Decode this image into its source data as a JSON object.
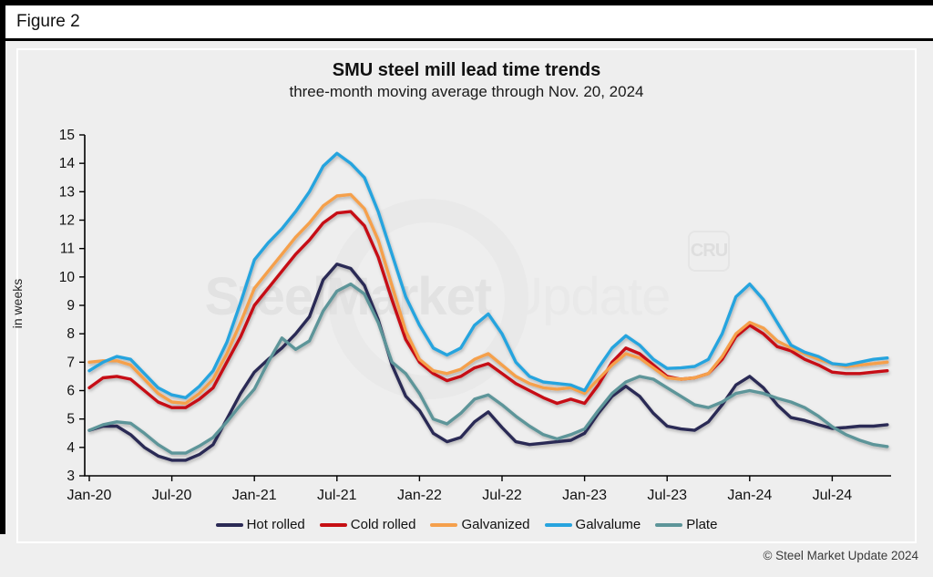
{
  "figure_label": "Figure 2",
  "title": "SMU steel mill lead time trends",
  "subtitle": "three-month moving average through Nov. 20, 2024",
  "copyright": "© Steel Market Update 2024",
  "watermark": {
    "main": "SteelMarket",
    "secondary": "Update",
    "badge": "CRU"
  },
  "colors": {
    "background": "#efefef",
    "panel_background": "#eeeeee",
    "axis": "#000000",
    "hot_rolled": "#2b2a55",
    "cold_rolled": "#c60f13",
    "galvanized": "#f5a04c",
    "galvalume": "#27a4de",
    "plate": "#5d9599"
  },
  "chart_data": {
    "type": "line",
    "title": "SMU steel mill lead time trends",
    "subtitle": "three-month moving average through Nov. 20, 2024",
    "xlabel": "",
    "ylabel": "in weeks",
    "ylim": [
      3,
      15
    ],
    "ytick_step": 1,
    "grid": false,
    "legend_position": "bottom",
    "x_frequency": "monthly",
    "x_range": [
      "Jan-2020",
      "Nov-2024"
    ],
    "x_ticks": [
      {
        "label": "Jan-20",
        "month_index": 0
      },
      {
        "label": "Jul-20",
        "month_index": 6
      },
      {
        "label": "Jan-21",
        "month_index": 12
      },
      {
        "label": "Jul-21",
        "month_index": 18
      },
      {
        "label": "Jan-22",
        "month_index": 24
      },
      {
        "label": "Jul-22",
        "month_index": 30
      },
      {
        "label": "Jan-23",
        "month_index": 36
      },
      {
        "label": "Jul-23",
        "month_index": 42
      },
      {
        "label": "Jan-24",
        "month_index": 48
      },
      {
        "label": "Jul-24",
        "month_index": 54
      }
    ],
    "series": [
      {
        "name": "Hot rolled",
        "color": "#2b2a55",
        "values": [
          4.6,
          4.75,
          4.75,
          4.45,
          4.0,
          3.7,
          3.55,
          3.55,
          3.75,
          4.1,
          5.0,
          5.9,
          6.65,
          7.1,
          7.5,
          8.0,
          8.6,
          9.9,
          10.45,
          10.3,
          9.7,
          8.5,
          6.9,
          5.8,
          5.3,
          4.5,
          4.2,
          4.35,
          4.9,
          5.25,
          4.7,
          4.2,
          4.1,
          4.15,
          4.2,
          4.25,
          4.5,
          5.2,
          5.8,
          6.15,
          5.8,
          5.2,
          4.75,
          4.65,
          4.6,
          4.9,
          5.5,
          6.2,
          6.5,
          6.1,
          5.5,
          5.05,
          4.95,
          4.8,
          4.67,
          4.7,
          4.75,
          4.75,
          4.8
        ]
      },
      {
        "name": "Cold rolled",
        "color": "#c60f13",
        "values": [
          6.1,
          6.45,
          6.5,
          6.4,
          6.0,
          5.6,
          5.4,
          5.4,
          5.7,
          6.1,
          7.0,
          7.9,
          9.0,
          9.6,
          10.2,
          10.8,
          11.3,
          11.9,
          12.25,
          12.3,
          11.8,
          10.7,
          9.2,
          7.8,
          7.0,
          6.6,
          6.35,
          6.5,
          6.8,
          6.95,
          6.6,
          6.25,
          6.0,
          5.75,
          5.55,
          5.7,
          5.55,
          6.2,
          7.0,
          7.5,
          7.3,
          6.9,
          6.5,
          6.4,
          6.45,
          6.6,
          7.1,
          7.9,
          8.3,
          8.0,
          7.55,
          7.4,
          7.1,
          6.9,
          6.65,
          6.6,
          6.6,
          6.65,
          6.7
        ]
      },
      {
        "name": "Galvanized",
        "color": "#f5a04c",
        "values": [
          7.0,
          7.05,
          7.05,
          6.9,
          6.4,
          5.9,
          5.6,
          5.55,
          5.9,
          6.4,
          7.3,
          8.4,
          9.6,
          10.2,
          10.8,
          11.4,
          11.9,
          12.5,
          12.85,
          12.9,
          12.4,
          11.3,
          9.7,
          8.1,
          7.1,
          6.7,
          6.6,
          6.75,
          7.1,
          7.3,
          6.9,
          6.5,
          6.25,
          6.1,
          6.05,
          6.1,
          5.9,
          6.4,
          6.9,
          7.3,
          7.15,
          6.8,
          6.45,
          6.4,
          6.45,
          6.6,
          7.2,
          8.0,
          8.4,
          8.2,
          7.75,
          7.5,
          7.3,
          7.1,
          6.95,
          6.85,
          6.9,
          6.95,
          7.0
        ]
      },
      {
        "name": "Galvalume",
        "color": "#27a4de",
        "values": [
          6.7,
          7.0,
          7.2,
          7.1,
          6.6,
          6.1,
          5.85,
          5.75,
          6.15,
          6.7,
          7.7,
          9.1,
          10.6,
          11.2,
          11.7,
          12.3,
          13.0,
          13.9,
          14.35,
          14.0,
          13.5,
          12.3,
          10.8,
          9.3,
          8.3,
          7.5,
          7.25,
          7.5,
          8.3,
          8.7,
          8.0,
          7.0,
          6.5,
          6.3,
          6.25,
          6.2,
          6.0,
          6.8,
          7.5,
          7.93,
          7.6,
          7.1,
          6.78,
          6.8,
          6.85,
          7.1,
          8.0,
          9.3,
          9.75,
          9.2,
          8.4,
          7.6,
          7.35,
          7.2,
          6.95,
          6.9,
          7.0,
          7.1,
          7.15
        ]
      },
      {
        "name": "Plate",
        "color": "#5d9599",
        "values": [
          4.6,
          4.8,
          4.9,
          4.85,
          4.5,
          4.1,
          3.8,
          3.8,
          4.05,
          4.35,
          4.9,
          5.5,
          6.05,
          7.0,
          7.85,
          7.45,
          7.75,
          8.8,
          9.5,
          9.75,
          9.4,
          8.4,
          7.0,
          6.6,
          5.9,
          5.0,
          4.83,
          5.2,
          5.7,
          5.85,
          5.5,
          5.1,
          4.75,
          4.45,
          4.3,
          4.45,
          4.65,
          5.3,
          5.9,
          6.3,
          6.5,
          6.4,
          6.1,
          5.8,
          5.5,
          5.4,
          5.6,
          5.9,
          6.0,
          5.9,
          5.73,
          5.6,
          5.4,
          5.1,
          4.73,
          4.45,
          4.25,
          4.1,
          4.03
        ]
      }
    ]
  }
}
